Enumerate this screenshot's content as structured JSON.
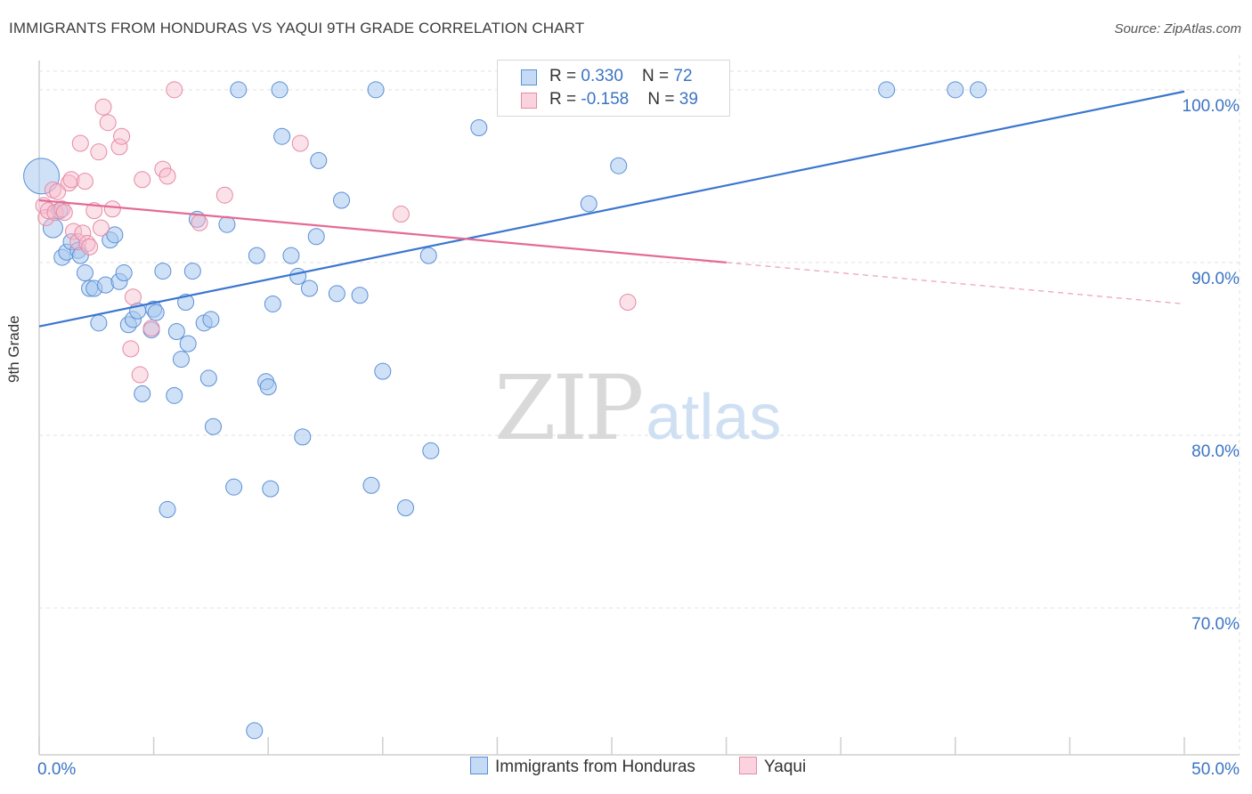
{
  "title": "IMMIGRANTS FROM HONDURAS VS YAQUI 9TH GRADE CORRELATION CHART",
  "source": "Source: ZipAtlas.com",
  "watermark": {
    "zip": "ZIP",
    "atlas": "atlas"
  },
  "legend": {
    "rows": [
      {
        "r_label": "R = ",
        "r_value": "0.330",
        "n_label": "N = ",
        "n_value": "72"
      },
      {
        "r_label": "R = ",
        "r_value": "-0.158",
        "n_label": "N = ",
        "n_value": "39"
      }
    ]
  },
  "colors": {
    "blue": "#a8c8ef",
    "blue_stroke": "#5b8fd6",
    "blue_line": "#3a76d0",
    "pink": "#f7bccd",
    "pink_stroke": "#e68aa7",
    "pink_line": "#e46b95",
    "axis_label": "#3b74c4",
    "grid": "#e0e0e0"
  },
  "chart_data": {
    "type": "scatter",
    "title": "IMMIGRANTS FROM HONDURAS VS YAQUI 9TH GRADE CORRELATION CHART",
    "xlabel": "",
    "ylabel": "9th Grade",
    "xlim": [
      0,
      50
    ],
    "ylim": [
      61.5,
      102
    ],
    "x_tick_labels": [
      "0.0%",
      "50.0%"
    ],
    "y_ticks": [
      70,
      80,
      90,
      100
    ],
    "y_tick_labels": [
      "70.0%",
      "80.0%",
      "90.0%",
      "100.0%"
    ],
    "grid": true,
    "legend_position": "top-center",
    "series": [
      {
        "name": "Immigrants from Honduras",
        "color": "#a8c8ef",
        "r": 0.33,
        "n": 72,
        "trend": {
          "x": [
            0,
            50
          ],
          "y": [
            86.3,
            99.9
          ]
        },
        "points": [
          [
            0.1,
            95.0,
            20
          ],
          [
            0.6,
            92.0,
            11
          ],
          [
            0.9,
            93.0,
            9
          ],
          [
            1.0,
            90.3,
            9
          ],
          [
            1.2,
            90.6,
            9
          ],
          [
            1.4,
            91.2,
            9
          ],
          [
            1.7,
            90.7,
            9
          ],
          [
            1.8,
            90.4,
            9
          ],
          [
            2.0,
            89.4,
            9
          ],
          [
            2.2,
            88.5,
            9
          ],
          [
            2.4,
            88.5,
            9
          ],
          [
            2.6,
            86.5,
            9
          ],
          [
            2.9,
            88.7,
            9
          ],
          [
            3.1,
            91.3,
            9
          ],
          [
            3.3,
            91.6,
            9
          ],
          [
            3.5,
            88.9,
            9
          ],
          [
            3.7,
            89.4,
            9
          ],
          [
            3.9,
            86.4,
            9
          ],
          [
            4.1,
            86.7,
            9
          ],
          [
            4.3,
            87.2,
            9
          ],
          [
            4.5,
            82.4,
            9
          ],
          [
            4.9,
            86.1,
            9
          ],
          [
            5.0,
            87.3,
            9
          ],
          [
            5.1,
            87.1,
            9
          ],
          [
            5.4,
            89.5,
            9
          ],
          [
            5.6,
            75.7,
            9
          ],
          [
            5.9,
            82.3,
            9
          ],
          [
            6.0,
            86.0,
            9
          ],
          [
            6.2,
            84.4,
            9
          ],
          [
            6.4,
            87.7,
            9
          ],
          [
            6.5,
            85.3,
            9
          ],
          [
            6.7,
            89.5,
            9
          ],
          [
            6.9,
            92.5,
            9
          ],
          [
            7.2,
            86.5,
            9
          ],
          [
            7.4,
            83.3,
            9
          ],
          [
            7.5,
            86.7,
            9
          ],
          [
            7.6,
            80.5,
            9
          ],
          [
            8.2,
            92.2,
            9
          ],
          [
            8.5,
            77.0,
            9
          ],
          [
            8.7,
            100.0,
            9
          ],
          [
            9.4,
            62.9,
            9
          ],
          [
            9.5,
            90.4,
            9
          ],
          [
            9.9,
            83.1,
            9
          ],
          [
            10.0,
            82.8,
            9
          ],
          [
            10.1,
            76.9,
            9
          ],
          [
            10.2,
            87.6,
            9
          ],
          [
            10.5,
            100.0,
            9
          ],
          [
            10.6,
            97.3,
            9
          ],
          [
            11.0,
            90.4,
            9
          ],
          [
            11.3,
            89.2,
            9
          ],
          [
            11.5,
            79.9,
            9
          ],
          [
            11.8,
            88.5,
            9
          ],
          [
            12.1,
            91.5,
            9
          ],
          [
            12.2,
            95.9,
            9
          ],
          [
            13.0,
            88.2,
            9
          ],
          [
            13.2,
            93.6,
            9
          ],
          [
            14.0,
            88.1,
            9
          ],
          [
            14.5,
            77.1,
            9
          ],
          [
            14.7,
            100.0,
            9
          ],
          [
            15.0,
            83.7,
            9
          ],
          [
            16.0,
            75.8,
            9
          ],
          [
            17.0,
            90.4,
            9
          ],
          [
            17.1,
            79.1,
            9
          ],
          [
            19.2,
            97.8,
            9
          ],
          [
            24.0,
            93.4,
            9
          ],
          [
            25.0,
            100.0,
            9
          ],
          [
            25.3,
            95.6,
            9
          ],
          [
            27.5,
            100.0,
            9
          ],
          [
            28.2,
            100.0,
            9
          ],
          [
            40.0,
            100.0,
            9
          ],
          [
            41.0,
            100.0,
            9
          ],
          [
            37.0,
            100.0,
            9
          ]
        ]
      },
      {
        "name": "Yaqui",
        "color": "#f7bccd",
        "r": -0.158,
        "n": 39,
        "trend": {
          "x": [
            0,
            30
          ],
          "y": [
            93.6,
            90.0
          ]
        },
        "trend_dashed": {
          "x": [
            30,
            50
          ],
          "y": [
            90.0,
            87.6
          ]
        },
        "points": [
          [
            0.2,
            93.3,
            9
          ],
          [
            0.3,
            92.6,
            9
          ],
          [
            0.4,
            93.0,
            9
          ],
          [
            0.6,
            94.2,
            9
          ],
          [
            0.7,
            92.9,
            9
          ],
          [
            0.8,
            94.1,
            9
          ],
          [
            1.0,
            93.1,
            9
          ],
          [
            1.1,
            92.9,
            9
          ],
          [
            1.3,
            94.6,
            9
          ],
          [
            1.4,
            94.8,
            9
          ],
          [
            1.5,
            91.8,
            9
          ],
          [
            1.7,
            91.2,
            9
          ],
          [
            1.8,
            96.9,
            9
          ],
          [
            1.9,
            91.7,
            9
          ],
          [
            2.0,
            94.7,
            9
          ],
          [
            2.1,
            91.1,
            9
          ],
          [
            2.2,
            90.9,
            9
          ],
          [
            2.4,
            93.0,
            9
          ],
          [
            2.6,
            96.4,
            9
          ],
          [
            2.7,
            92.0,
            9
          ],
          [
            2.8,
            99.0,
            9
          ],
          [
            3.0,
            98.1,
            9
          ],
          [
            3.2,
            93.1,
            9
          ],
          [
            3.5,
            96.7,
            9
          ],
          [
            3.6,
            97.3,
            9
          ],
          [
            4.0,
            85.0,
            9
          ],
          [
            4.1,
            88.0,
            9
          ],
          [
            4.4,
            83.5,
            9
          ],
          [
            4.5,
            94.8,
            9
          ],
          [
            4.9,
            86.2,
            9
          ],
          [
            5.4,
            95.4,
            9
          ],
          [
            5.6,
            95.0,
            9
          ],
          [
            5.9,
            100.0,
            9
          ],
          [
            7.0,
            92.3,
            9
          ],
          [
            8.1,
            93.9,
            9
          ],
          [
            11.4,
            96.9,
            9
          ],
          [
            15.8,
            92.8,
            9
          ],
          [
            25.7,
            87.7,
            9
          ],
          [
            25.8,
            100.0,
            9
          ]
        ]
      }
    ]
  }
}
